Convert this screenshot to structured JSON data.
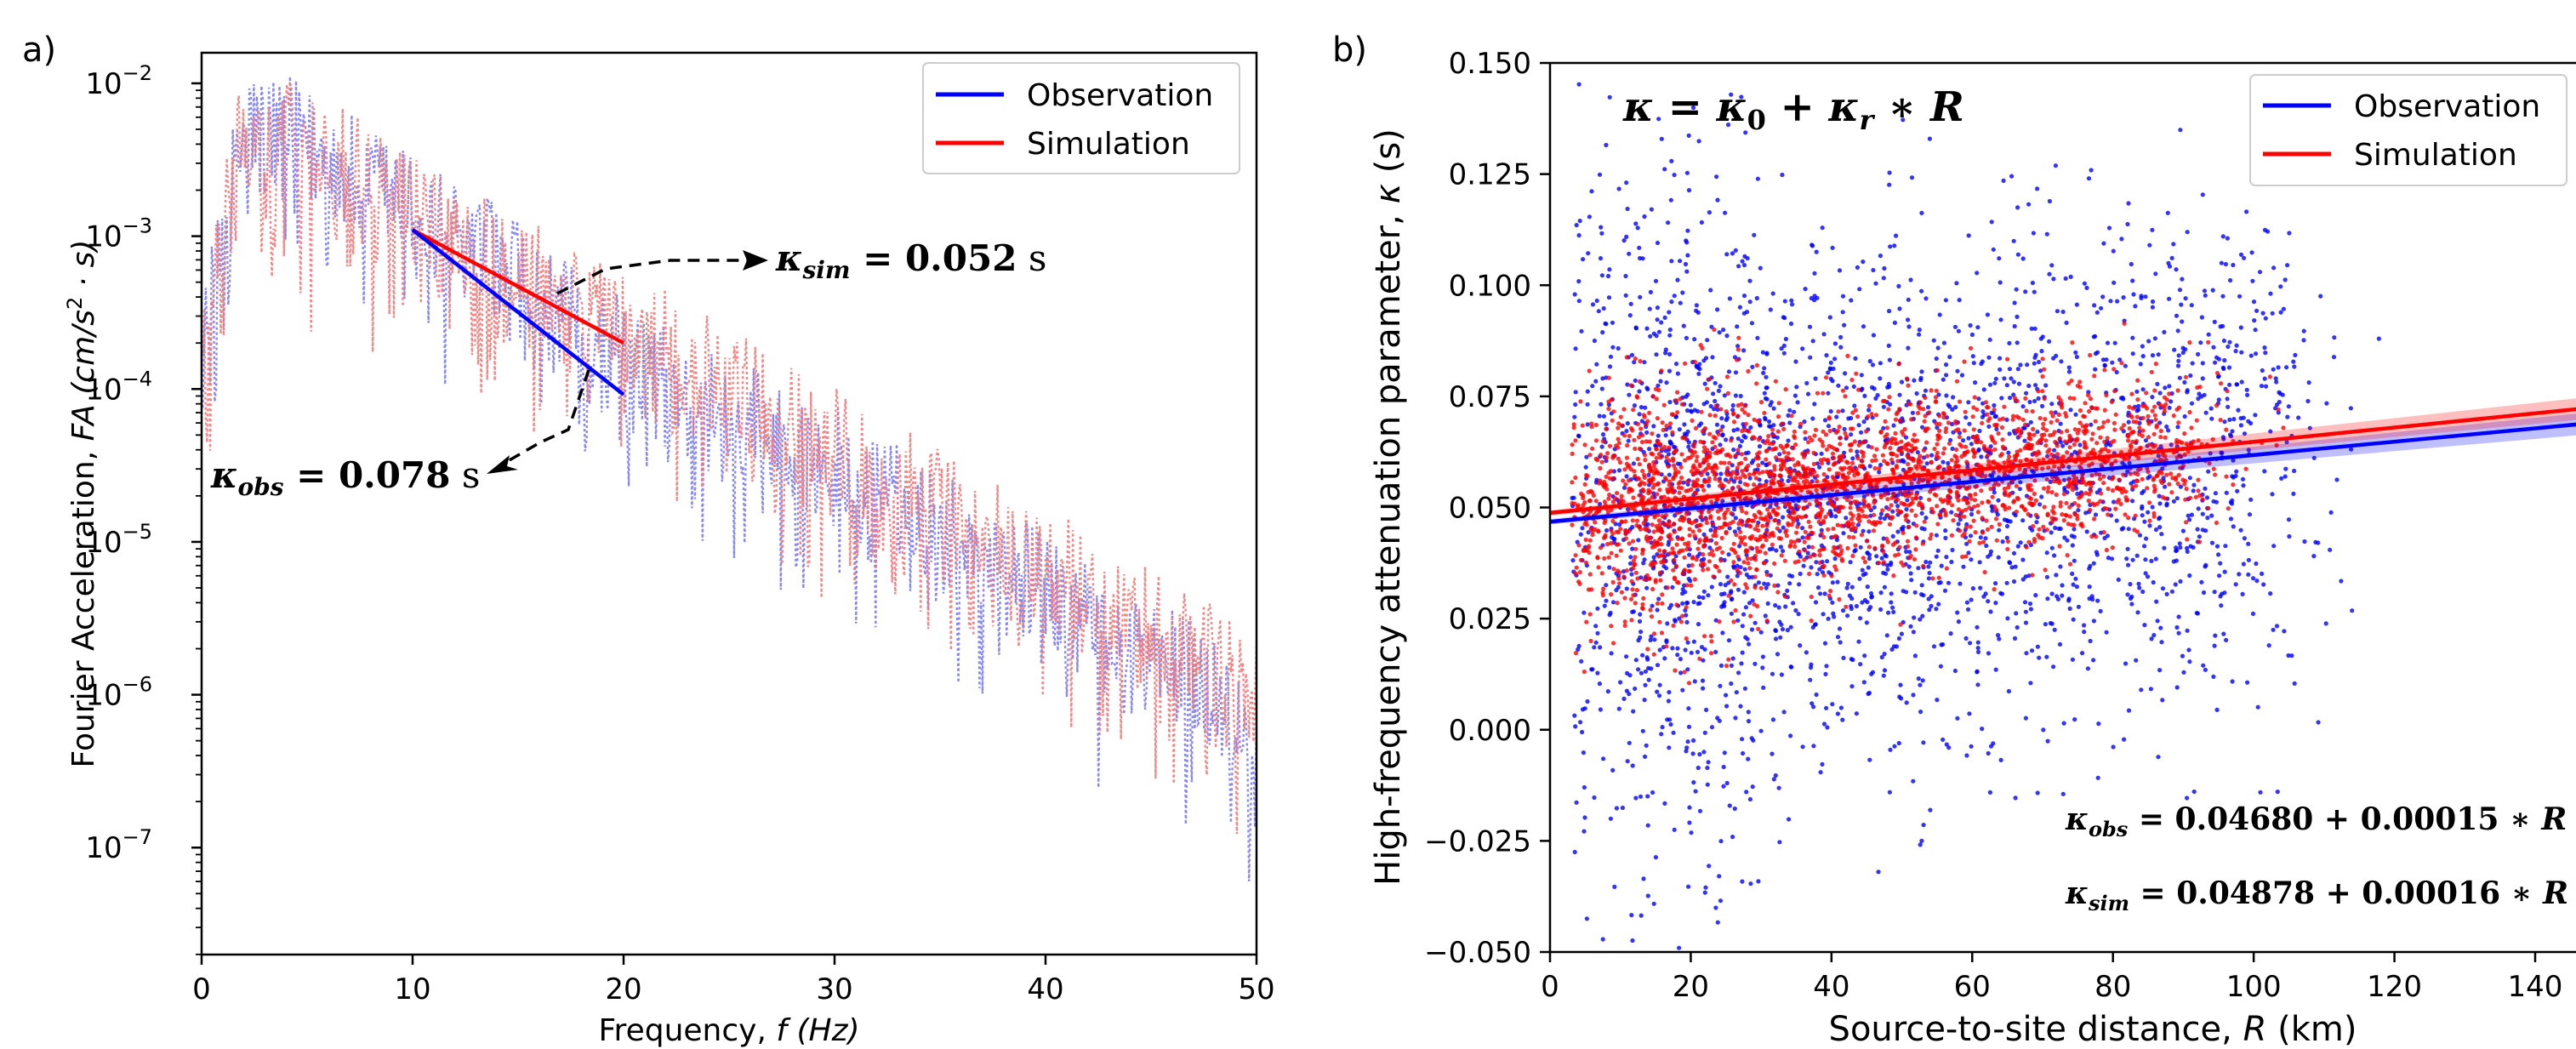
{
  "figure": {
    "panels": [
      {
        "panel_label": "a)",
        "chart_data": {
          "type": "line",
          "xlabel_plain": "Frequency, ",
          "xlabel_italic": "f (Hz)",
          "ylabel_plain": "Fourier Acceleration, ",
          "ylabel_italic": "FA (cm/s",
          "ylabel_sup": "2",
          "ylabel_tail": " · s)",
          "xlim": [
            0,
            50
          ],
          "ylim_log10": [
            -7.7,
            -1.8
          ],
          "yscale": "log",
          "grid": false,
          "legend_position": "top-right",
          "x_ticks": [
            0,
            10,
            20,
            30,
            40,
            50
          ],
          "y_ticks": [
            {
              "exp": -2,
              "label_base": "10",
              "label_exp": "−2"
            },
            {
              "exp": -3,
              "label_base": "10",
              "label_exp": "−3"
            },
            {
              "exp": -4,
              "label_base": "10",
              "label_exp": "−4"
            },
            {
              "exp": -5,
              "label_base": "10",
              "label_exp": "−5"
            },
            {
              "exp": -6,
              "label_base": "10",
              "label_exp": "−6"
            },
            {
              "exp": -7,
              "label_base": "10",
              "label_exp": "−7"
            }
          ],
          "series": [
            {
              "name": "Observation",
              "color": "#0000ff",
              "spectrum_color": "#7b7bef",
              "fit_line": {
                "x": [
                  10,
                  20
                ],
                "y": [
                  0.0011,
                  9.2e-05
                ]
              }
            },
            {
              "name": "Simulation",
              "color": "#ff0000",
              "spectrum_color": "#ef7b7b",
              "fit_line": {
                "x": [
                  10,
                  20
                ],
                "y": [
                  0.0011,
                  0.0002
                ]
              }
            }
          ],
          "annotations": [
            {
              "kappa": "κ",
              "sub": "sim",
              "value": " = 0.052",
              "unit": " s",
              "color": "#000000"
            },
            {
              "kappa": "κ",
              "sub": "obs",
              "value": " = 0.078",
              "unit": " s",
              "color": "#000000"
            }
          ]
        }
      },
      {
        "panel_label": "b)",
        "chart_data": {
          "type": "scatter",
          "xlabel_plain": "Source-to-site distance, ",
          "xlabel_italic": "R",
          "xlabel_tail": " (km)",
          "ylabel_plain": "High-frequency attenuation parameter, ",
          "ylabel_italic": "κ",
          "ylabel_tail": " (s)",
          "xlim": [
            0,
            150
          ],
          "ylim": [
            -0.05,
            0.15
          ],
          "grid": false,
          "legend_position": "top-right",
          "x_ticks": [
            0,
            20,
            40,
            60,
            80,
            100,
            120,
            140
          ],
          "y_ticks": [
            "0.150",
            "0.125",
            "0.100",
            "0.075",
            "0.050",
            "0.025",
            "0.000",
            "−0.025",
            "−0.050"
          ],
          "model_title": {
            "k": "κ",
            "eq": " = ",
            "k0": "κ",
            "k0sub": "0",
            "plus": " + ",
            "kr": "κ",
            "krsub": "r",
            "star": " ∗ ",
            "R": "R"
          },
          "series": [
            {
              "name": "Observation",
              "color": "#0000ff",
              "intercept": 0.0468,
              "slope": 0.00015
            },
            {
              "name": "Simulation",
              "color": "#ff0000",
              "intercept": 0.04878,
              "slope": 0.00016
            }
          ],
          "equations": [
            {
              "k": "κ",
              "sub": "obs",
              "text": " = 0.04680 + 0.00015 ∗ ",
              "R": "R"
            },
            {
              "k": "κ",
              "sub": "sim",
              "text": " = 0.04878 + 0.00016 ∗ ",
              "R": "R"
            }
          ]
        }
      }
    ]
  }
}
